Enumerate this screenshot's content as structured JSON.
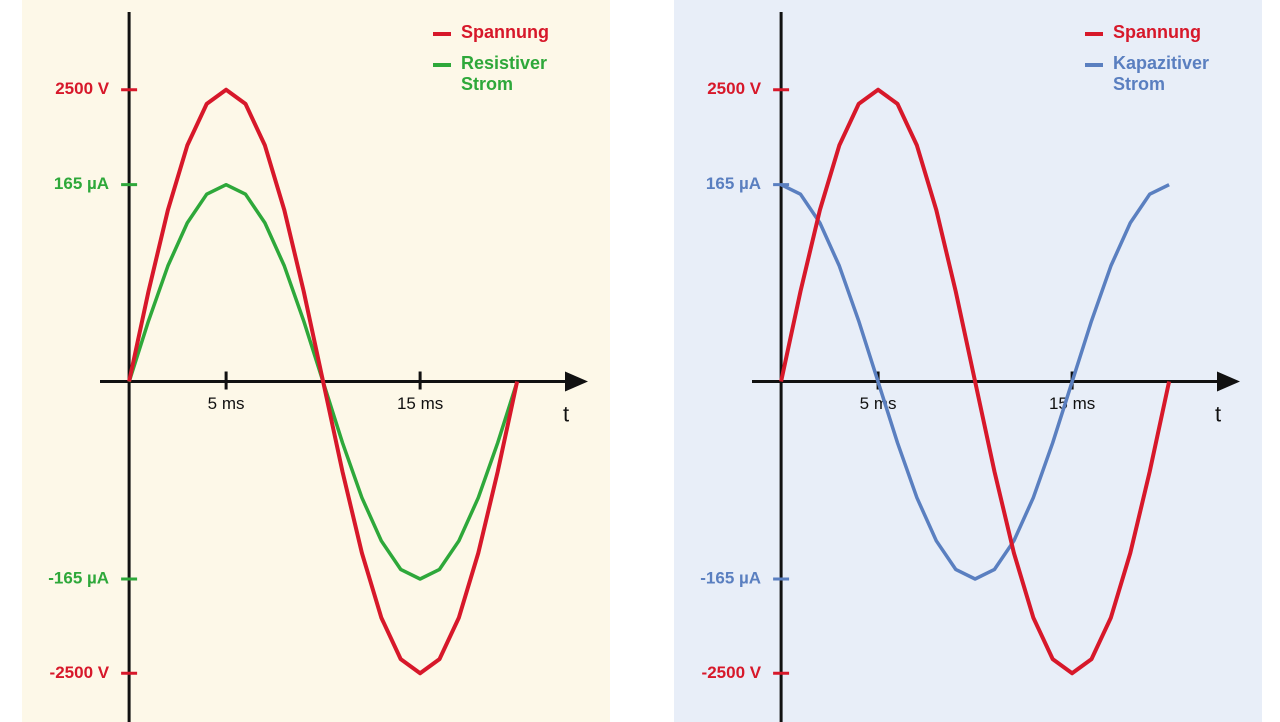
{
  "chart_data": [
    {
      "type": "line",
      "background": "#fdf8e8",
      "x_label": "t",
      "x": [
        0,
        1,
        2,
        3,
        4,
        5,
        6,
        7,
        8,
        9,
        10,
        11,
        12,
        13,
        14,
        15,
        16,
        17,
        18,
        19,
        20
      ],
      "xlim": [
        -1.5,
        23.5
      ],
      "xticks": [
        {
          "value": 5,
          "label": "5 ms"
        },
        {
          "value": 15,
          "label": "15 ms"
        }
      ],
      "ylim": [
        -2900,
        3140
      ],
      "yticks": [
        {
          "value": 2500,
          "label": "2500 V"
        },
        {
          "value": -2500,
          "label": "-2500 V"
        }
      ],
      "y2lim": [
        -283,
        307
      ],
      "y2ticks": [
        {
          "value": 165,
          "label": "165 µA"
        },
        {
          "value": -165,
          "label": "-165 µA"
        }
      ],
      "series": [
        {
          "name": "Spannung",
          "color": "#d7182a",
          "values": [
            0,
            773,
            1469,
            2023,
            2378,
            2500,
            2378,
            2023,
            1469,
            773,
            0,
            -773,
            -1469,
            -2023,
            -2378,
            -2500,
            -2378,
            -2023,
            -1469,
            -773,
            0
          ]
        },
        {
          "name": "Resistiver Strom",
          "color": "#2ea83a",
          "axis": "y2",
          "values": [
            0,
            51,
            97,
            133,
            157,
            165,
            157,
            133,
            97,
            51,
            0,
            -51,
            -97,
            -133,
            -157,
            -165,
            -157,
            -133,
            -97,
            -51,
            0
          ]
        }
      ]
    },
    {
      "type": "line",
      "background": "#e8eef8",
      "x_label": "t",
      "x": [
        0,
        1,
        2,
        3,
        4,
        5,
        6,
        7,
        8,
        9,
        10,
        11,
        12,
        13,
        14,
        15,
        16,
        17,
        18,
        19,
        20
      ],
      "xlim": [
        -1.5,
        23.5
      ],
      "xticks": [
        {
          "value": 5,
          "label": "5 ms"
        },
        {
          "value": 15,
          "label": "15 ms"
        }
      ],
      "ylim": [
        -2900,
        3140
      ],
      "yticks": [
        {
          "value": 2500,
          "label": "2500 V"
        },
        {
          "value": -2500,
          "label": "-2500 V"
        }
      ],
      "y2lim": [
        -283,
        307
      ],
      "y2ticks": [
        {
          "value": 165,
          "label": "165 µA"
        },
        {
          "value": -165,
          "label": "-165 µA"
        }
      ],
      "series": [
        {
          "name": "Spannung",
          "color": "#d7182a",
          "values": [
            0,
            773,
            1469,
            2023,
            2378,
            2500,
            2378,
            2023,
            1469,
            773,
            0,
            -773,
            -1469,
            -2023,
            -2378,
            -2500,
            -2378,
            -2023,
            -1469,
            -773,
            0
          ]
        },
        {
          "name": "Kapazitiver Strom",
          "color": "#5a7fc0",
          "axis": "y2",
          "values": [
            165,
            157,
            133,
            97,
            51,
            0,
            -51,
            -97,
            -133,
            -157,
            -165,
            -157,
            -133,
            -97,
            -51,
            0,
            51,
            97,
            133,
            157,
            165
          ]
        }
      ]
    }
  ]
}
